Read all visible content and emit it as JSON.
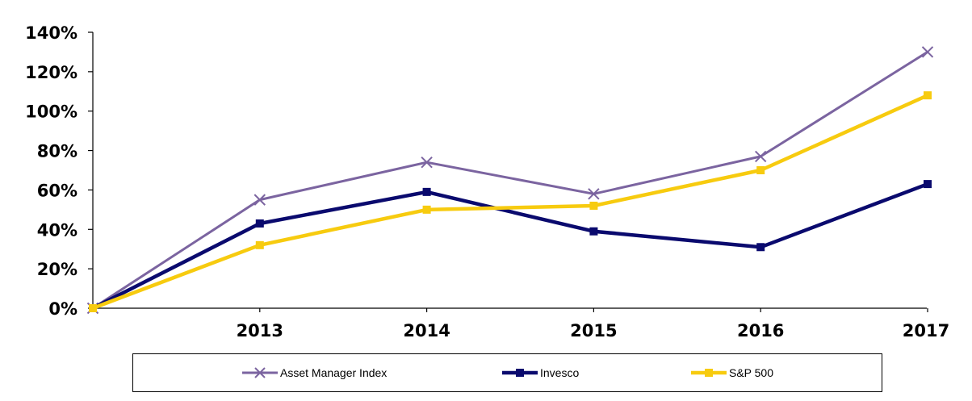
{
  "chart_data": {
    "type": "line",
    "title": "",
    "xlabel": "",
    "ylabel": "",
    "x": [
      "2012",
      "2013",
      "2014",
      "2015",
      "2016",
      "2017"
    ],
    "x_tick_labels": [
      "",
      "2013",
      "2014",
      "2015",
      "2016",
      "2017"
    ],
    "y_tick_labels": [
      "0%",
      "20%",
      "40%",
      "60%",
      "80%",
      "100%",
      "120%",
      "140%"
    ],
    "ylim": [
      0,
      140
    ],
    "grid": false,
    "legend_position": "bottom",
    "series": [
      {
        "name": "Asset Manager Index",
        "color": "#7b64a0",
        "marker": "x",
        "values": [
          0,
          55,
          74,
          58,
          77,
          130
        ]
      },
      {
        "name": "Invesco",
        "color": "#0a0a6e",
        "marker": "square",
        "values": [
          0,
          43,
          59,
          39,
          31,
          63
        ]
      },
      {
        "name": "S&P 500",
        "color": "#f7cb0f",
        "marker": "square",
        "values": [
          0,
          32,
          50,
          52,
          70,
          108
        ]
      }
    ]
  }
}
